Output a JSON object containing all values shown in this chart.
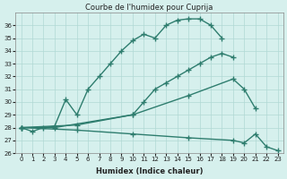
{
  "line1_x": [
    0,
    1,
    2,
    3,
    4,
    5,
    6,
    7,
    8,
    9,
    10,
    11,
    12,
    13,
    14,
    15,
    16,
    17,
    18
  ],
  "line1_y": [
    28,
    27.7,
    28,
    28.1,
    30.2,
    29,
    31,
    32,
    33,
    34,
    34.8,
    35.3,
    35,
    36,
    36.4,
    36.5,
    36.5,
    36,
    35
  ],
  "line2_x": [
    0,
    3,
    10,
    11,
    12,
    13,
    14,
    15,
    16,
    17,
    18,
    19
  ],
  "line2_y": [
    28,
    28,
    29,
    30,
    31,
    31.5,
    32,
    32.5,
    33,
    33.5,
    33.8,
    33.5
  ],
  "line3_x": [
    0,
    5,
    10,
    15,
    19,
    20,
    21
  ],
  "line3_y": [
    28,
    28.2,
    29,
    30.5,
    31.8,
    31,
    29.5
  ],
  "line4_x": [
    0,
    5,
    10,
    15,
    19,
    20,
    21,
    22,
    23
  ],
  "line4_y": [
    28,
    27.8,
    27.5,
    27.2,
    27,
    26.8,
    27.5,
    26.5,
    26.2
  ],
  "line_color": "#2e7d6e",
  "bg_color": "#d6f0ed",
  "grid_color": "#b0d8d4",
  "title": "Courbe de l'humidex pour Cuprija",
  "xlabel": "Humidex (Indice chaleur)",
  "ylabel": "",
  "xlim": [
    -0.5,
    23.5
  ],
  "ylim": [
    26,
    37
  ],
  "yticks": [
    26,
    27,
    28,
    29,
    30,
    31,
    32,
    33,
    34,
    35,
    36
  ],
  "xticks": [
    0,
    1,
    2,
    3,
    4,
    5,
    6,
    7,
    8,
    9,
    10,
    11,
    12,
    13,
    14,
    15,
    16,
    17,
    18,
    19,
    20,
    21,
    22,
    23
  ]
}
